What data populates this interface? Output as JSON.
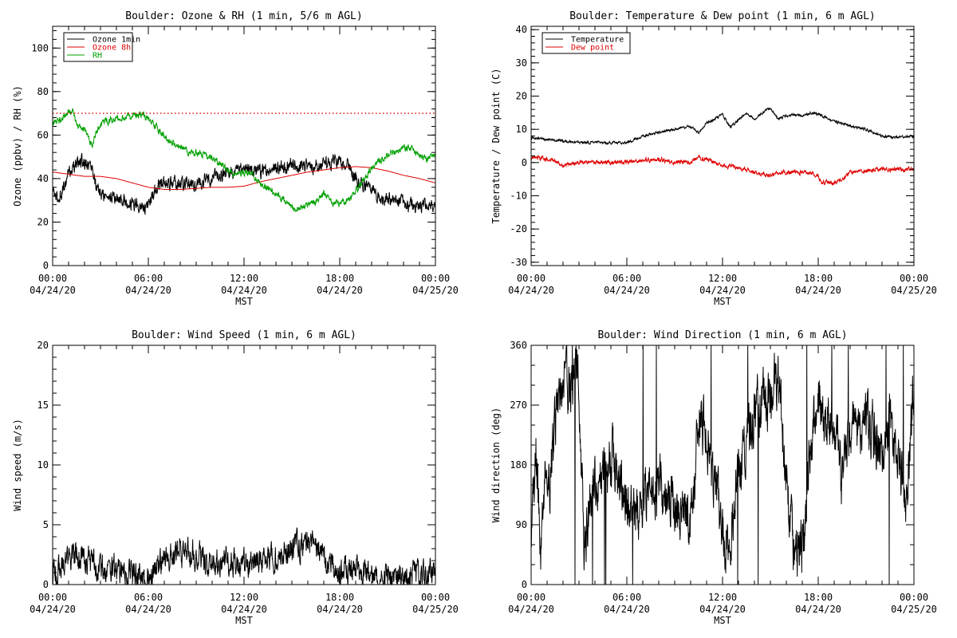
{
  "colors": {
    "black": "#000000",
    "red": "#e00000",
    "green": "#00a000"
  },
  "chart_data": [
    {
      "id": "ozone_rh",
      "type": "line",
      "title": "Boulder: Ozone & RH (1 min, 5/6 m AGL)",
      "xlabel": "MST",
      "ylabel": "Ozone (ppbv) / RH (%)",
      "xlim": [
        0,
        24
      ],
      "ylim": [
        0,
        110
      ],
      "yticks": [
        0,
        20,
        40,
        60,
        80,
        100
      ],
      "xticks": [
        {
          "time": "00:00",
          "date": "04/24/20"
        },
        {
          "time": "06:00",
          "date": "04/24/20"
        },
        {
          "time": "12:00",
          "date": "04/24/20"
        },
        {
          "time": "18:00",
          "date": "04/24/20"
        },
        {
          "time": "00:00",
          "date": "04/25/20"
        }
      ],
      "legend": {
        "placement": "top-left"
      },
      "reference_line": {
        "y": 70,
        "style": "dotted",
        "color": "#e00000"
      },
      "series": [
        {
          "name": "Ozone 1min",
          "color": "#000000",
          "noise": 2.5,
          "x": [
            0,
            0.3,
            0.7,
            1.0,
            1.5,
            2.0,
            2.5,
            2.8,
            3.2,
            4.0,
            5.0,
            5.7,
            6.0,
            6.5,
            7.0,
            8.0,
            9.0,
            10.0,
            11.0,
            12.0,
            13.0,
            14.0,
            15.0,
            16.0,
            17.0,
            18.0,
            18.5,
            19.0,
            20.0,
            21.0,
            22.0,
            23.0,
            24.0
          ],
          "y": [
            35,
            30,
            36,
            43,
            47,
            48,
            45,
            34,
            32,
            31,
            29,
            27,
            28,
            36,
            38,
            38,
            38,
            40,
            43,
            45,
            43,
            45,
            46,
            45,
            46,
            48,
            46,
            40,
            34,
            30,
            28,
            27,
            28
          ]
        },
        {
          "name": "Ozone 8h",
          "color": "#e00000",
          "noise": 0,
          "x": [
            0,
            1,
            2,
            3,
            4,
            5,
            6,
            7,
            8,
            9,
            10,
            11,
            12,
            13,
            14,
            15,
            16,
            17,
            18,
            19,
            20,
            21,
            22,
            23,
            24
          ],
          "y": [
            43,
            42,
            41,
            41,
            40,
            38,
            36,
            35,
            35,
            35.5,
            36,
            36,
            36.5,
            38.5,
            40,
            41.5,
            43,
            44,
            45,
            45.5,
            45,
            43.5,
            41.5,
            40,
            38
          ]
        },
        {
          "name": "RH",
          "color": "#00a000",
          "noise": 1.2,
          "x": [
            0,
            0.5,
            1.0,
            1.3,
            1.6,
            2.0,
            2.5,
            2.8,
            3.2,
            4.0,
            5.0,
            5.7,
            6.2,
            6.8,
            7.3,
            8.0,
            8.5,
            9.0,
            9.8,
            10.5,
            11.0,
            11.5,
            12.0,
            12.5,
            13.0,
            13.5,
            14.0,
            14.5,
            15.0,
            15.5,
            16.0,
            16.5,
            17.0,
            17.5,
            18.0,
            18.5,
            19.0,
            19.5,
            20.0,
            21.0,
            22.0,
            22.5,
            23.0,
            23.5,
            24.0
          ],
          "y": [
            66,
            67,
            71,
            71,
            63,
            63,
            55,
            63,
            66,
            67,
            69,
            69,
            66,
            61,
            57,
            55,
            52,
            52,
            50,
            47,
            43,
            42,
            43,
            42,
            38,
            36,
            33,
            30,
            27,
            26,
            28,
            29,
            33,
            29,
            29,
            30,
            34,
            40,
            45,
            51,
            54,
            54,
            50,
            49,
            51
          ]
        }
      ]
    },
    {
      "id": "temp_dew",
      "type": "line",
      "title": "Boulder: Temperature & Dew point (1 min, 6 m AGL)",
      "xlabel": "MST",
      "ylabel": "Temperature / Dew point (C)",
      "xlim": [
        0,
        24
      ],
      "ylim": [
        -31,
        41
      ],
      "yticks": [
        -30,
        -20,
        -10,
        0,
        10,
        20,
        30,
        40
      ],
      "xticks": [
        {
          "time": "00:00",
          "date": "04/24/20"
        },
        {
          "time": "06:00",
          "date": "04/24/20"
        },
        {
          "time": "12:00",
          "date": "04/24/20"
        },
        {
          "time": "18:00",
          "date": "04/24/20"
        },
        {
          "time": "00:00",
          "date": "04/25/20"
        }
      ],
      "legend": {
        "placement": "top-left"
      },
      "series": [
        {
          "name": "Temperature",
          "color": "#000000",
          "noise": 0.3,
          "x": [
            0,
            1,
            2,
            3,
            4,
            5,
            6,
            7,
            8,
            9,
            10,
            10.5,
            11,
            11.5,
            12,
            12.5,
            13,
            13.5,
            14,
            14.5,
            15,
            15.5,
            16,
            16.5,
            17,
            17.5,
            18,
            19,
            20,
            21,
            22,
            23,
            24
          ],
          "y": [
            7.5,
            7,
            6.5,
            6,
            6,
            6,
            6,
            8,
            9,
            10,
            11,
            9,
            12,
            13,
            14.5,
            10.5,
            13,
            15,
            13,
            15,
            16.5,
            13,
            14,
            14.5,
            14,
            15,
            14.5,
            12.5,
            11,
            10,
            8,
            7.5,
            8
          ]
        },
        {
          "name": "Dew point",
          "color": "#e00000",
          "noise": 0.5,
          "x": [
            0,
            0.5,
            1,
            1.5,
            2,
            2.5,
            3,
            4,
            5,
            6,
            7,
            8,
            9,
            10,
            10.5,
            11,
            11.5,
            12,
            12.5,
            13,
            13.5,
            14,
            14.5,
            15,
            15.5,
            16,
            17,
            17.5,
            18,
            18.2,
            18.5,
            19,
            19.5,
            20,
            21,
            22,
            23,
            24
          ],
          "y": [
            1.5,
            1.5,
            1,
            0.5,
            -1,
            -0.5,
            0,
            0,
            0,
            0,
            0.5,
            1,
            0,
            0,
            1.5,
            1,
            0,
            -1,
            -1,
            -1.5,
            -2,
            -3,
            -3.5,
            -4,
            -3,
            -3,
            -3,
            -3,
            -4,
            -6,
            -6,
            -6,
            -5,
            -3,
            -2.5,
            -2,
            -2,
            -2
          ]
        }
      ]
    },
    {
      "id": "wind_speed",
      "type": "line",
      "title": "Boulder: Wind Speed (1 min, 6 m AGL)",
      "xlabel": "MST",
      "ylabel": "Wind speed (m/s)",
      "xlim": [
        0,
        24
      ],
      "ylim": [
        0,
        20
      ],
      "yticks": [
        0,
        5,
        10,
        15,
        20
      ],
      "xticks": [
        {
          "time": "00:00",
          "date": "04/24/20"
        },
        {
          "time": "06:00",
          "date": "04/24/20"
        },
        {
          "time": "12:00",
          "date": "04/24/20"
        },
        {
          "time": "18:00",
          "date": "04/24/20"
        },
        {
          "time": "00:00",
          "date": "04/25/20"
        }
      ],
      "series": [
        {
          "color": "#000000",
          "noise": 0.9,
          "floor": 0,
          "x": [
            0,
            0.5,
            1,
            1.5,
            2,
            3,
            4,
            5,
            5.5,
            6,
            6.5,
            7,
            8,
            9,
            10,
            11,
            12,
            13,
            14,
            15,
            16,
            16.5,
            17,
            18,
            19,
            20,
            21,
            22,
            23,
            24
          ],
          "y": [
            1,
            1.5,
            2,
            2.5,
            2,
            1.5,
            1.2,
            0.8,
            0.5,
            0.6,
            1.5,
            2.3,
            2.7,
            2.5,
            2,
            1.8,
            1.6,
            2,
            2.4,
            3,
            3.5,
            3,
            2,
            1.2,
            1.5,
            0.8,
            0.6,
            0.6,
            0.8,
            1.3
          ]
        }
      ]
    },
    {
      "id": "wind_dir",
      "type": "line",
      "title": "Boulder: Wind Direction (1 min, 6 m AGL)",
      "xlabel": "MST",
      "ylabel": "Wind direction (deg)",
      "xlim": [
        0,
        24
      ],
      "ylim": [
        0,
        360
      ],
      "yticks": [
        0,
        90,
        180,
        270,
        360
      ],
      "xticks": [
        {
          "time": "00:00",
          "date": "04/24/20"
        },
        {
          "time": "06:00",
          "date": "04/24/20"
        },
        {
          "time": "12:00",
          "date": "04/24/20"
        },
        {
          "time": "18:00",
          "date": "04/24/20"
        },
        {
          "time": "00:00",
          "date": "04/25/20"
        }
      ],
      "series": [
        {
          "color": "#000000",
          "noise": 35,
          "floor": 0,
          "ceil": 360,
          "x": [
            0,
            0.3,
            0.6,
            0.9,
            1.2,
            1.6,
            2.0,
            2.5,
            3.0,
            3.3,
            3.6,
            4.0,
            4.5,
            5.0,
            5.5,
            6.0,
            6.5,
            7.0,
            7.5,
            8.0,
            8.5,
            9.0,
            9.5,
            10.0,
            10.5,
            11.0,
            11.5,
            12.0,
            12.5,
            13.0,
            13.5,
            14.0,
            14.5,
            15.0,
            15.5,
            16.0,
            16.5,
            17.0,
            17.5,
            18.0,
            18.5,
            19.0,
            19.5,
            20.0,
            20.5,
            21.0,
            21.5,
            22.0,
            22.5,
            23.0,
            23.5,
            24.0
          ],
          "y": [
            40,
            200,
            60,
            180,
            150,
            280,
            300,
            310,
            320,
            60,
            100,
            170,
            170,
            190,
            170,
            120,
            100,
            110,
            150,
            150,
            130,
            120,
            100,
            90,
            240,
            230,
            150,
            80,
            60,
            160,
            220,
            260,
            270,
            280,
            320,
            150,
            40,
            60,
            200,
            280,
            230,
            250,
            150,
            230,
            230,
            250,
            220,
            180,
            250,
            200,
            120,
            300
          ]
        }
      ]
    }
  ]
}
